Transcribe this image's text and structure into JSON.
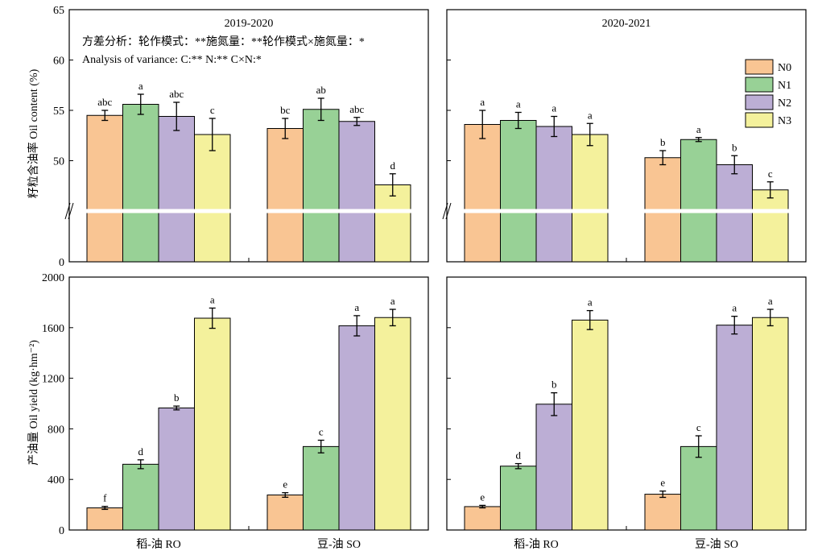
{
  "colors": {
    "N0": "#f9c593",
    "N1": "#98d196",
    "N2": "#bcaed5",
    "N3": "#f4f19c"
  },
  "legend": [
    "N0",
    "N1",
    "N2",
    "N3"
  ],
  "note_cn": "方差分析：轮作模式：**施氮量：**轮作模式×施氮量：*",
  "note_en": "Analysis of variance: C:** N:** C×N:*",
  "chart_data": [
    {
      "type": "bar",
      "panel": "top-left",
      "title": "2019-2020",
      "ylabel": "籽粒含油率 Oil content (%)",
      "ylim": [
        0,
        65
      ],
      "axis_break": true,
      "yticks": [
        0,
        50,
        55,
        60,
        65
      ],
      "categories": [
        "稻-油 RO",
        "豆-油 SO"
      ],
      "series": [
        {
          "name": "N0",
          "values": [
            54.5,
            53.2
          ],
          "errors": [
            0.5,
            1.0
          ],
          "labels": [
            "abc",
            "bc"
          ]
        },
        {
          "name": "N1",
          "values": [
            55.6,
            55.1
          ],
          "errors": [
            1.0,
            1.1
          ],
          "labels": [
            "a",
            "ab"
          ]
        },
        {
          "name": "N2",
          "values": [
            54.4,
            53.9
          ],
          "errors": [
            1.4,
            0.4
          ],
          "labels": [
            "abc",
            "abc"
          ]
        },
        {
          "name": "N3",
          "values": [
            52.6,
            47.6
          ],
          "errors": [
            1.6,
            1.1
          ],
          "labels": [
            "c",
            "d"
          ]
        }
      ]
    },
    {
      "type": "bar",
      "panel": "top-right",
      "title": "2020-2021",
      "ylim": [
        0,
        65
      ],
      "axis_break": true,
      "categories": [
        "稻-油 RO",
        "豆-油 SO"
      ],
      "series": [
        {
          "name": "N0",
          "values": [
            53.6,
            50.3
          ],
          "errors": [
            1.4,
            0.7
          ],
          "labels": [
            "a",
            "b"
          ]
        },
        {
          "name": "N1",
          "values": [
            54.0,
            52.1
          ],
          "errors": [
            0.8,
            0.2
          ],
          "labels": [
            "a",
            "a"
          ]
        },
        {
          "name": "N2",
          "values": [
            53.4,
            49.6
          ],
          "errors": [
            1.0,
            0.9
          ],
          "labels": [
            "a",
            "b"
          ]
        },
        {
          "name": "N3",
          "values": [
            52.6,
            47.1
          ],
          "errors": [
            1.1,
            0.8
          ],
          "labels": [
            "a",
            "c"
          ]
        }
      ]
    },
    {
      "type": "bar",
      "panel": "bottom-left",
      "ylabel": "产油量 Oil yield (kg·hm⁻²)",
      "ylim": [
        0,
        2000
      ],
      "yticks": [
        0,
        400,
        800,
        1200,
        1600,
        2000
      ],
      "categories": [
        "稻-油 RO",
        "豆-油 SO"
      ],
      "series": [
        {
          "name": "N0",
          "values": [
            175,
            277
          ],
          "errors": [
            12,
            18
          ],
          "labels": [
            "f",
            "e"
          ]
        },
        {
          "name": "N1",
          "values": [
            520,
            660
          ],
          "errors": [
            35,
            50
          ],
          "labels": [
            "d",
            "c"
          ]
        },
        {
          "name": "N2",
          "values": [
            965,
            1615
          ],
          "errors": [
            15,
            80
          ],
          "labels": [
            "b",
            "a"
          ]
        },
        {
          "name": "N3",
          "values": [
            1675,
            1680
          ],
          "errors": [
            80,
            65
          ],
          "labels": [
            "a",
            "a"
          ]
        }
      ]
    },
    {
      "type": "bar",
      "panel": "bottom-right",
      "ylim": [
        0,
        2000
      ],
      "categories": [
        "稻-油 RO",
        "豆-油 SO"
      ],
      "series": [
        {
          "name": "N0",
          "values": [
            185,
            283
          ],
          "errors": [
            10,
            25
          ],
          "labels": [
            "e",
            "e"
          ]
        },
        {
          "name": "N1",
          "values": [
            505,
            660
          ],
          "errors": [
            20,
            85
          ],
          "labels": [
            "d",
            "c"
          ]
        },
        {
          "name": "N2",
          "values": [
            995,
            1620
          ],
          "errors": [
            90,
            70
          ],
          "labels": [
            "b",
            "a"
          ]
        },
        {
          "name": "N3",
          "values": [
            1660,
            1680
          ],
          "errors": [
            75,
            65
          ],
          "labels": [
            "a",
            "a"
          ]
        }
      ]
    }
  ]
}
